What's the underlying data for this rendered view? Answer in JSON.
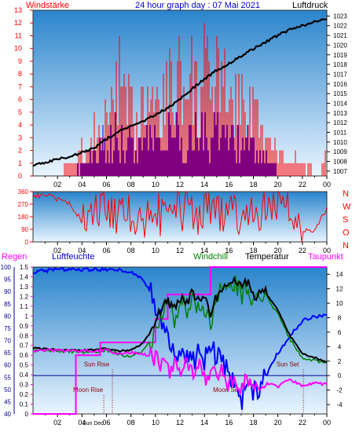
{
  "header": {
    "left_label": "Windstärke",
    "title": "24 hour graph day : 07 Mai 2021",
    "right_label": "Luftdruck"
  },
  "colors": {
    "wind": "#ff0000",
    "gust": "#0000ff",
    "pressure": "#000000",
    "humidity": "#0000ff",
    "windchill": "#008000",
    "temperature": "#000000",
    "dewpoint": "#ff00ff",
    "rain": "#ff00ff",
    "axis_red": "#ff0000",
    "axis_navy": "#00008b",
    "bg_top": "#2c86cc",
    "bg_bottom": "#e8f4ff"
  },
  "chart_data": [
    {
      "id": "wind_pressure",
      "type": "bar",
      "left_axis_title": "Windstärke",
      "right_axis_title": "Luftdruck",
      "left_ticks": [
        "0",
        "1",
        "2",
        "3",
        "4",
        "5",
        "6",
        "7",
        "8",
        "9",
        "10",
        "11",
        "12",
        "13"
      ],
      "ylim_left": [
        0,
        13
      ],
      "right_ticks": [
        "1007",
        "1008",
        "1009",
        "1010",
        "1011",
        "1012",
        "1013",
        "1014",
        "1015",
        "1016",
        "1017",
        "1018",
        "1019",
        "1020",
        "1021",
        "1022",
        "1023"
      ],
      "ylim_right": [
        1006.5,
        1023.6
      ],
      "x_ticks": [
        "02",
        "04",
        "06",
        "08",
        "10",
        "12",
        "14",
        "16",
        "18",
        "20",
        "22",
        "00"
      ],
      "xlim_hours": [
        0,
        24
      ],
      "series": [
        {
          "name": "Wind",
          "color": "#ff0000",
          "x": [
            0,
            1,
            2,
            3,
            3.5,
            4,
            4.5,
            5,
            5.5,
            6,
            6.5,
            7,
            7.5,
            8,
            8.5,
            9,
            9.5,
            10,
            10.5,
            11,
            11.5,
            12,
            12.5,
            13,
            13.5,
            14,
            14.5,
            15,
            15.5,
            16,
            16.5,
            17,
            17.5,
            18,
            18.5,
            19,
            19.5,
            20,
            20.5,
            21,
            21.5,
            22,
            22.5,
            23,
            23.5,
            24
          ],
          "values": [
            0,
            0,
            0,
            1,
            2,
            3,
            2,
            5,
            4,
            6,
            9,
            11,
            7,
            8,
            5,
            11,
            9,
            10,
            6,
            11,
            8,
            12,
            6,
            11,
            7,
            11,
            9,
            12,
            8,
            11,
            7,
            10,
            6,
            9,
            5,
            4,
            3,
            2,
            2,
            1,
            2,
            1,
            1,
            0,
            0,
            3
          ]
        },
        {
          "name": "Gust",
          "color": "#0000ff",
          "x": [
            0,
            3,
            4,
            5,
            5.5,
            6,
            6.5,
            7,
            7.5,
            8,
            8.5,
            9,
            9.5,
            10,
            10.5,
            11,
            11.5,
            12,
            12.5,
            13,
            13.5,
            14,
            14.5,
            15,
            15.5,
            16,
            16.5,
            17,
            17.5,
            18,
            18.5,
            19,
            20,
            24
          ],
          "values": [
            0,
            0,
            1,
            2,
            3,
            3,
            4,
            4,
            3,
            4,
            3,
            5,
            4,
            4,
            3,
            5,
            4,
            5,
            3,
            5,
            4,
            4,
            3,
            5,
            4,
            5,
            3,
            4,
            3,
            3,
            2,
            2,
            0,
            0
          ]
        },
        {
          "name": "Luftdruck",
          "color": "#000000",
          "x": [
            0,
            1,
            2,
            3,
            4,
            5,
            6,
            7,
            8,
            9,
            10,
            11,
            12,
            13,
            14,
            15,
            16,
            17,
            18,
            19,
            20,
            21,
            22,
            23,
            24
          ],
          "values": [
            1007.6,
            1007.9,
            1008.2,
            1008.5,
            1008.9,
            1009.4,
            1010.3,
            1011.1,
            1011.6,
            1012.1,
            1012.8,
            1013.5,
            1014.4,
            1015.5,
            1016.5,
            1017.4,
            1018.1,
            1018.9,
            1019.6,
            1020.3,
            1021.0,
            1021.6,
            1022.0,
            1022.4,
            1022.7
          ]
        }
      ]
    },
    {
      "id": "wind_direction",
      "type": "line",
      "left_ticks": [
        "0",
        "90",
        "180",
        "270",
        "360"
      ],
      "ylim": [
        0,
        360
      ],
      "right_ticks": [
        "N",
        "W",
        "S",
        "O",
        "N"
      ],
      "x_ticks": [
        "02",
        "04",
        "06",
        "08",
        "10",
        "12",
        "14",
        "16",
        "18",
        "20",
        "22",
        "00"
      ],
      "xlim_hours": [
        0,
        24
      ],
      "series": [
        {
          "name": "Windrichtung",
          "color": "#ff0000",
          "x": [
            0,
            1,
            2,
            3,
            4,
            5,
            6,
            7,
            8,
            9,
            10,
            11,
            12,
            13,
            14,
            15,
            16,
            17,
            18,
            19,
            20,
            21,
            22,
            23,
            24
          ],
          "values": [
            330,
            340,
            300,
            280,
            150,
            220,
            250,
            180,
            200,
            170,
            210,
            160,
            230,
            190,
            220,
            200,
            240,
            180,
            250,
            210,
            300,
            230,
            80,
            90,
            240
          ]
        }
      ]
    },
    {
      "id": "humidity_temperature",
      "type": "line",
      "legend": [
        "Regen",
        "Luftfeuchte",
        "Windchill",
        "Temperatur",
        "Taupunkt"
      ],
      "left_ticks_rain": [
        "0",
        "0.1",
        "0.2",
        "0.3",
        "0.4",
        "0.5",
        "0.6",
        "0.7",
        "0.8",
        "0.9",
        "1",
        "1.1",
        "1.2",
        "1.3",
        "1.4",
        "1.5"
      ],
      "rain_lim": [
        0,
        1.5
      ],
      "left_ticks_humidity": [
        "40",
        "45",
        "50",
        "55",
        "60",
        "65",
        "70",
        "75",
        "80",
        "85",
        "90",
        "95",
        "100"
      ],
      "humidity_lim": [
        40,
        100
      ],
      "right_ticks": [
        "-4",
        "-2",
        "0",
        "2",
        "4",
        "6",
        "8",
        "10",
        "12",
        "14"
      ],
      "temp_lim": [
        -5.3,
        15
      ],
      "x_ticks": [
        "02",
        "04",
        "06",
        "08",
        "10",
        "12",
        "14",
        "16",
        "18",
        "20",
        "22",
        "00"
      ],
      "xlim_hours": [
        0,
        24
      ],
      "annotations": [
        {
          "text": "Sun Rise",
          "hour": 5.2,
          "level": 0.5
        },
        {
          "text": "Moon Rise",
          "hour": 4.5,
          "level": 0.15
        },
        {
          "text": "Sun Set",
          "hour": 20.8,
          "level": 0.5
        },
        {
          "text": "Moon Set",
          "hour": 15.8,
          "level": 0.15
        }
      ],
      "x_extra_labels": [
        "Sun Rise",
        "Sun Dec"
      ],
      "series": [
        {
          "name": "Luftfeuchte",
          "color": "#0000ff",
          "x": [
            0,
            2,
            4,
            6,
            7,
            8,
            9,
            10,
            10.5,
            11,
            11.5,
            12,
            12.5,
            13,
            13.5,
            14,
            14.5,
            15,
            15.5,
            16,
            16.5,
            17,
            17.5,
            18,
            19,
            20,
            21,
            22,
            23,
            24
          ],
          "values": [
            98,
            99,
            99,
            99,
            99,
            98,
            95,
            85,
            80,
            70,
            65,
            62,
            66,
            60,
            64,
            61,
            67,
            63,
            62,
            55,
            50,
            45,
            52,
            48,
            55,
            65,
            72,
            78,
            80,
            80
          ]
        },
        {
          "name": "Windchill",
          "color": "#008000",
          "x": [
            0,
            2,
            4,
            6,
            7,
            8,
            9,
            10,
            10.5,
            11,
            11.5,
            12,
            12.5,
            13,
            13.5,
            14,
            14.5,
            15,
            15.5,
            16,
            16.5,
            17,
            17.5,
            18,
            19,
            20,
            21,
            22,
            23,
            24
          ],
          "values": [
            3.5,
            3.4,
            3.2,
            3.5,
            3.0,
            2.5,
            3.5,
            5.5,
            8.5,
            10.0,
            7.5,
            10.5,
            9.0,
            11.0,
            9.5,
            9.5,
            6.5,
            10.5,
            12.0,
            11.5,
            13.0,
            11.0,
            12.5,
            10.0,
            11.0,
            8.5,
            5.0,
            2.5,
            2.0,
            1.8
          ]
        },
        {
          "name": "Temperatur",
          "color": "#000000",
          "x": [
            0,
            2,
            4,
            6,
            7,
            8,
            9,
            10,
            10.5,
            11,
            11.5,
            12,
            12.5,
            13,
            13.5,
            14,
            14.5,
            15,
            15.5,
            16,
            16.5,
            17,
            17.5,
            18,
            19,
            20,
            21,
            22,
            23,
            24
          ],
          "values": [
            3.8,
            3.6,
            3.5,
            3.7,
            3.4,
            3.5,
            4.5,
            7.0,
            9.5,
            10.5,
            9.0,
            11.0,
            10.0,
            11.5,
            10.5,
            10.5,
            8.5,
            11.0,
            12.5,
            12.0,
            13.0,
            12.0,
            13.0,
            11.0,
            11.5,
            9.0,
            5.5,
            3.0,
            2.5,
            1.8
          ]
        },
        {
          "name": "Taupunkt",
          "color": "#ff00ff",
          "x": [
            0,
            2,
            4,
            6,
            7,
            8,
            9,
            10,
            10.5,
            11,
            11.5,
            12,
            12.5,
            13,
            13.5,
            14,
            14.5,
            15,
            15.5,
            16,
            16.5,
            17,
            17.5,
            18,
            19,
            20,
            21,
            22,
            23,
            24
          ],
          "values": [
            3.5,
            3.5,
            3.4,
            3.5,
            3.0,
            3.2,
            3.0,
            2.5,
            1.5,
            0.5,
            1.5,
            0.0,
            2.0,
            0.5,
            1.5,
            -0.5,
            0.5,
            0.0,
            1.0,
            -1.5,
            -0.5,
            -1.5,
            -0.5,
            -2.0,
            -1.0,
            -1.5,
            -0.5,
            -1.5,
            -1.0,
            -1.2
          ]
        },
        {
          "name": "Regen",
          "color": "#ff00ff",
          "x": [
            0,
            3.5,
            3.5,
            5.5,
            5.5,
            10,
            10,
            11,
            11,
            14.5,
            14.5,
            24
          ],
          "values": [
            0,
            0,
            0.6,
            0.6,
            0.73,
            0.73,
            0.97,
            0.97,
            1.22,
            1.22,
            1.5,
            1.5
          ]
        }
      ]
    }
  ]
}
